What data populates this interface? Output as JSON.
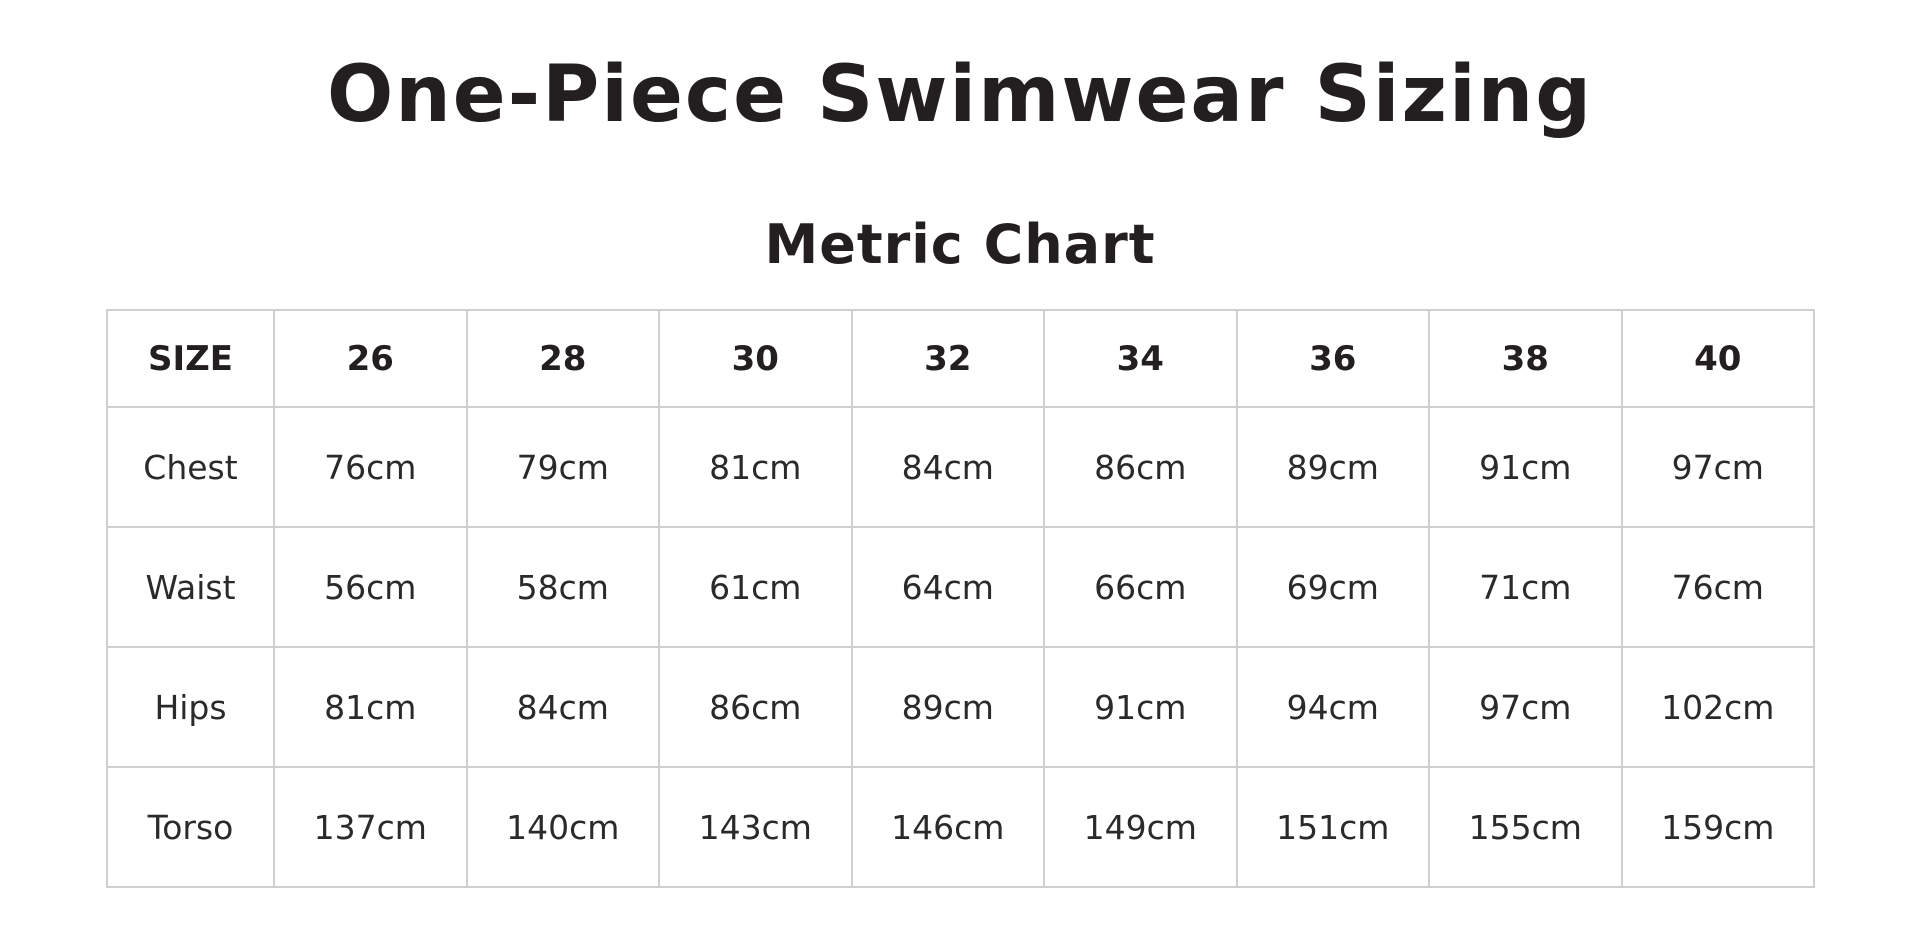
{
  "header": {
    "title": "One-Piece Swimwear Sizing",
    "subtitle": "Metric Chart"
  },
  "table": {
    "columns": [
      "SIZE",
      "26",
      "28",
      "30",
      "32",
      "34",
      "36",
      "38",
      "40"
    ],
    "rows": [
      [
        "Chest",
        "76cm",
        "79cm",
        "81cm",
        "84cm",
        "86cm",
        "89cm",
        "91cm",
        "97cm"
      ],
      [
        "Waist",
        "56cm",
        "58cm",
        "61cm",
        "64cm",
        "66cm",
        "69cm",
        "71cm",
        "76cm"
      ],
      [
        "Hips",
        "81cm",
        "84cm",
        "86cm",
        "89cm",
        "91cm",
        "94cm",
        "97cm",
        "102cm"
      ],
      [
        "Torso",
        "137cm",
        "140cm",
        "143cm",
        "146cm",
        "149cm",
        "151cm",
        "155cm",
        "159cm"
      ]
    ]
  }
}
